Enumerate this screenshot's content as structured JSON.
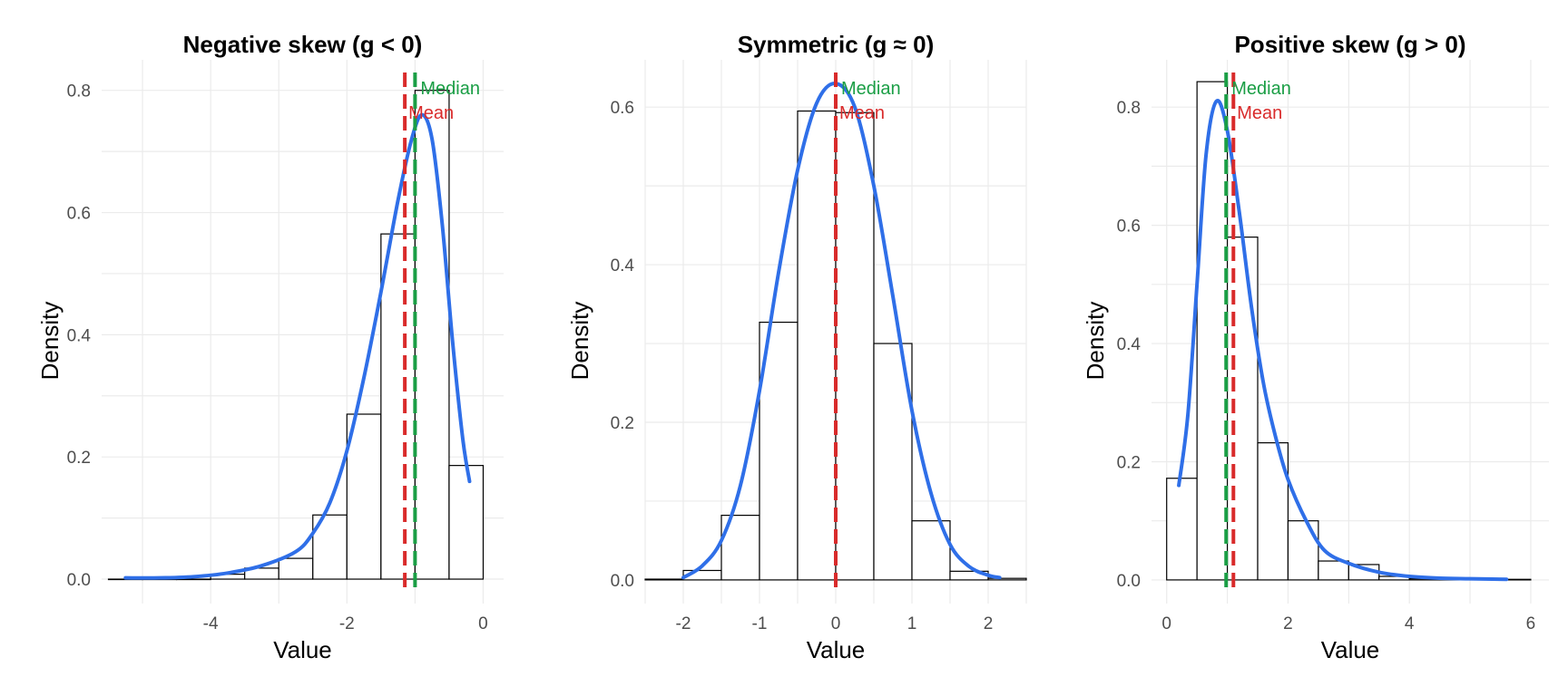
{
  "figure": {
    "colors": {
      "median": "#1a9e45",
      "mean": "#d92b2b",
      "density": "#2f6fe8",
      "grid": "#ebebeb",
      "bar_edge": "#000000"
    },
    "annotation_labels": {
      "median": "Median",
      "mean": "Mean"
    }
  },
  "chart_data": [
    {
      "type": "histogram",
      "title": "Negative skew (g < 0)",
      "xlabel": "Value",
      "ylabel": "Density",
      "xlim": [
        -5.6,
        0.3
      ],
      "ylim": [
        -0.04,
        0.85
      ],
      "xticks": [
        -4,
        -2,
        0
      ],
      "xtick_labels": [
        "-4",
        "-2",
        "0"
      ],
      "yticks": [
        0,
        0.2,
        0.4,
        0.6,
        0.8
      ],
      "ytick_labels": [
        "0.0",
        "0.2",
        "0.4",
        "0.6",
        "0.8"
      ],
      "bin_width": 0.5,
      "bins": [
        {
          "x0": -5.5,
          "density": 0.0
        },
        {
          "x0": -5.0,
          "density": 0.0
        },
        {
          "x0": -4.5,
          "density": 0.0
        },
        {
          "x0": -4.0,
          "density": 0.008
        },
        {
          "x0": -3.5,
          "density": 0.018
        },
        {
          "x0": -3.0,
          "density": 0.034
        },
        {
          "x0": -2.5,
          "density": 0.105
        },
        {
          "x0": -2.0,
          "density": 0.27
        },
        {
          "x0": -1.5,
          "density": 0.565
        },
        {
          "x0": -1.0,
          "density": 0.8
        },
        {
          "x0": -0.5,
          "density": 0.186
        }
      ],
      "density_curve": [
        [
          -5.25,
          0.002
        ],
        [
          -4.75,
          0.002
        ],
        [
          -4.25,
          0.004
        ],
        [
          -3.75,
          0.01
        ],
        [
          -3.25,
          0.022
        ],
        [
          -2.75,
          0.045
        ],
        [
          -2.5,
          0.075
        ],
        [
          -2.25,
          0.125
        ],
        [
          -2.0,
          0.21
        ],
        [
          -1.75,
          0.33
        ],
        [
          -1.5,
          0.47
        ],
        [
          -1.25,
          0.62
        ],
        [
          -1.05,
          0.72
        ],
        [
          -0.9,
          0.76
        ],
        [
          -0.75,
          0.72
        ],
        [
          -0.6,
          0.58
        ],
        [
          -0.45,
          0.39
        ],
        [
          -0.3,
          0.23
        ],
        [
          -0.2,
          0.16
        ]
      ],
      "mean": -1.15,
      "median": -1.0,
      "label_order": "median-right"
    },
    {
      "type": "histogram",
      "title": "Symmetric (g ≈ 0)",
      "xlabel": "Value",
      "ylabel": "Density",
      "xlim": [
        -2.5,
        2.5
      ],
      "ylim": [
        -0.03,
        0.66
      ],
      "xticks": [
        -2,
        -1,
        0,
        1,
        2
      ],
      "xtick_labels": [
        "-2",
        "-1",
        "0",
        "1",
        "2"
      ],
      "yticks": [
        0,
        0.2,
        0.4,
        0.6
      ],
      "ytick_labels": [
        "0.0",
        "0.2",
        "0.4",
        "0.6"
      ],
      "bin_width": 0.5,
      "bins": [
        {
          "x0": -2.5,
          "density": 0.001
        },
        {
          "x0": -2.0,
          "density": 0.012
        },
        {
          "x0": -1.5,
          "density": 0.082
        },
        {
          "x0": -1.0,
          "density": 0.327
        },
        {
          "x0": -0.5,
          "density": 0.595
        },
        {
          "x0": 0.0,
          "density": 0.593
        },
        {
          "x0": 0.5,
          "density": 0.3
        },
        {
          "x0": 1.0,
          "density": 0.075
        },
        {
          "x0": 1.5,
          "density": 0.011
        },
        {
          "x0": 2.0,
          "density": 0.002
        }
      ],
      "density_curve": [
        [
          -2.0,
          0.003
        ],
        [
          -1.75,
          0.018
        ],
        [
          -1.5,
          0.05
        ],
        [
          -1.25,
          0.12
        ],
        [
          -1.0,
          0.24
        ],
        [
          -0.75,
          0.39
        ],
        [
          -0.5,
          0.52
        ],
        [
          -0.25,
          0.605
        ],
        [
          0.0,
          0.63
        ],
        [
          0.25,
          0.6
        ],
        [
          0.5,
          0.5
        ],
        [
          0.75,
          0.36
        ],
        [
          1.0,
          0.215
        ],
        [
          1.25,
          0.11
        ],
        [
          1.5,
          0.045
        ],
        [
          1.75,
          0.017
        ],
        [
          2.0,
          0.006
        ],
        [
          2.15,
          0.003
        ]
      ],
      "mean": 0.0,
      "median": 0.0,
      "label_order": "both-right"
    },
    {
      "type": "histogram",
      "title": "Positive skew (g > 0)",
      "xlabel": "Value",
      "ylabel": "Density",
      "xlim": [
        -0.25,
        6.3
      ],
      "ylim": [
        -0.04,
        0.88
      ],
      "xticks": [
        0,
        2,
        4,
        6
      ],
      "xtick_labels": [
        "0",
        "2",
        "4",
        "6"
      ],
      "yticks": [
        0,
        0.2,
        0.4,
        0.6,
        0.8
      ],
      "ytick_labels": [
        "0.0",
        "0.2",
        "0.4",
        "0.6",
        "0.8"
      ],
      "bin_width": 0.5,
      "bins": [
        {
          "x0": 0.0,
          "density": 0.172
        },
        {
          "x0": 0.5,
          "density": 0.843
        },
        {
          "x0": 1.0,
          "density": 0.58
        },
        {
          "x0": 1.5,
          "density": 0.232
        },
        {
          "x0": 2.0,
          "density": 0.1
        },
        {
          "x0": 2.5,
          "density": 0.032
        },
        {
          "x0": 3.0,
          "density": 0.026
        },
        {
          "x0": 3.5,
          "density": 0.006
        },
        {
          "x0": 4.0,
          "density": 0.002
        },
        {
          "x0": 4.5,
          "density": 0.001
        },
        {
          "x0": 5.0,
          "density": 0.001
        },
        {
          "x0": 5.5,
          "density": 0.001
        }
      ],
      "density_curve": [
        [
          0.2,
          0.16
        ],
        [
          0.35,
          0.28
        ],
        [
          0.5,
          0.5
        ],
        [
          0.65,
          0.72
        ],
        [
          0.82,
          0.81
        ],
        [
          1.0,
          0.76
        ],
        [
          1.2,
          0.62
        ],
        [
          1.4,
          0.46
        ],
        [
          1.6,
          0.33
        ],
        [
          1.8,
          0.24
        ],
        [
          2.0,
          0.17
        ],
        [
          2.3,
          0.1
        ],
        [
          2.6,
          0.05
        ],
        [
          3.0,
          0.028
        ],
        [
          3.5,
          0.013
        ],
        [
          4.0,
          0.006
        ],
        [
          4.5,
          0.003
        ],
        [
          5.0,
          0.002
        ],
        [
          5.6,
          0.001
        ]
      ],
      "mean": 1.1,
      "median": 0.98,
      "label_order": "median-left"
    }
  ]
}
